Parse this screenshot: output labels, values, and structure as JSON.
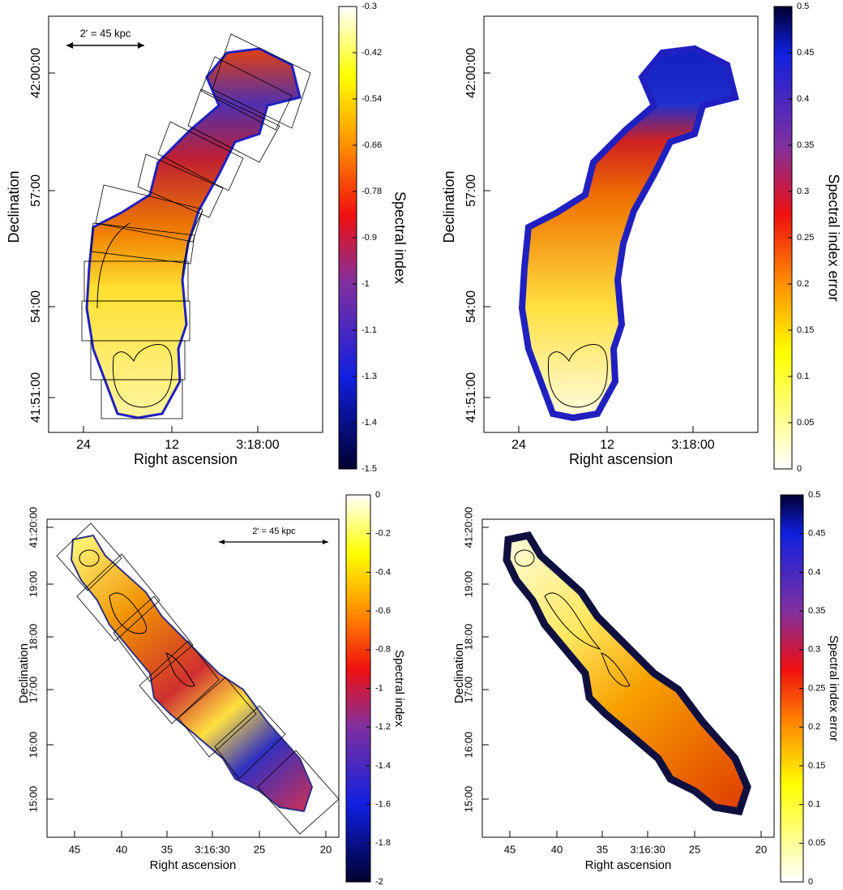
{
  "panels": [
    {
      "y_label": "Declination",
      "x_label": "Right ascension",
      "colorbar_label": "Spectral index",
      "scale_bar": "2' = 45 kpc",
      "y_ticks": [
        "42:00:00",
        "57:00",
        "54:00",
        "41:51:00"
      ],
      "x_ticks": [
        "24",
        "12",
        "3:18:00"
      ],
      "colorbar_ticks": [
        "-0.3",
        "-0.42",
        "-0.54",
        "-0.66",
        "-0.78",
        "-0.9",
        "-1",
        "-1.1",
        "-1.3",
        "-1.4",
        "-1.5"
      ]
    },
    {
      "y_label": "Declination",
      "x_label": "Right ascension",
      "colorbar_label": "Spectral index error",
      "y_ticks": [
        "42:00:00",
        "57:00",
        "54:00",
        "41:51:00"
      ],
      "x_ticks": [
        "24",
        "12",
        "3:18:00"
      ],
      "colorbar_ticks": [
        "0.5",
        "0.45",
        "0.4",
        "0.35",
        "0.3",
        "0.25",
        "0.2",
        "0.15",
        "0.1",
        "0.05",
        "0"
      ]
    },
    {
      "y_label": "Declination",
      "x_label": "Right ascension",
      "colorbar_label": "Spectral index",
      "scale_bar": "2' = 45 kpc",
      "y_ticks": [
        "41:20:00",
        "19:00",
        "18:00",
        "17:00",
        "16:00",
        "15:00"
      ],
      "x_ticks": [
        "45",
        "40",
        "35",
        "3:16:30",
        "25",
        "20"
      ],
      "colorbar_ticks": [
        "0",
        "-0.2",
        "-0.4",
        "-0.6",
        "-0.8",
        "-1",
        "-1.2",
        "-1.4",
        "-1.6",
        "-1.8",
        "-2"
      ]
    },
    {
      "y_label": "Declination",
      "x_label": "Right ascension",
      "colorbar_label": "Spectral index error",
      "y_ticks": [
        "41:20:00",
        "19:00",
        "18:00",
        "17:00",
        "16:00",
        "15:00"
      ],
      "x_ticks": [
        "45",
        "40",
        "35",
        "3:16:30",
        "25",
        "20"
      ],
      "colorbar_ticks": [
        "0.5",
        "0.45",
        "0.4",
        "0.35",
        "0.3",
        "0.25",
        "0.2",
        "0.15",
        "0.1",
        "0.05",
        "0"
      ]
    }
  ]
}
